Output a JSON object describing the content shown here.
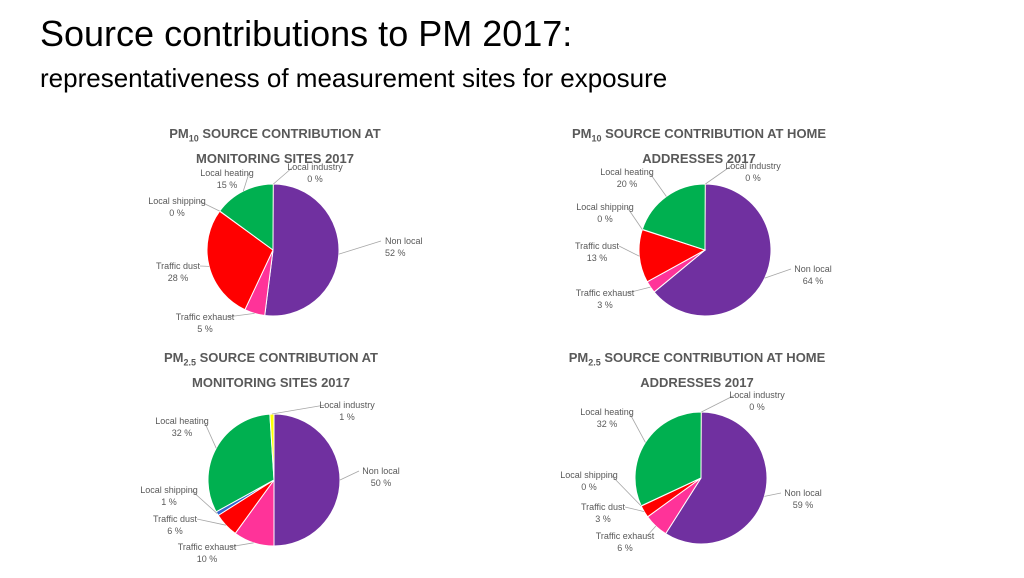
{
  "slide": {
    "title": "Source contributions to PM 2017:",
    "subtitle": "representativeness of measurement sites for exposure"
  },
  "chart_data": [
    {
      "type": "pie",
      "title_pre": "PM",
      "title_sub": "10",
      "title_line1": " SOURCE CONTRIBUTION AT",
      "title_line2": "MONITORING SITES 2017",
      "slices": [
        {
          "name": "Non local",
          "value": 52,
          "label": "52 %",
          "color": "#7030a0"
        },
        {
          "name": "Traffic exhaust",
          "value": 5,
          "label": "5 %",
          "color": "#ff3399"
        },
        {
          "name": "Traffic dust",
          "value": 28,
          "label": "28 %",
          "color": "#ff0000"
        },
        {
          "name": "Local shipping",
          "value": 0,
          "label": "0 %",
          "color": "#3366cc"
        },
        {
          "name": "Local heating",
          "value": 15,
          "label": "15 %",
          "color": "#00b050"
        },
        {
          "name": "Local industry",
          "value": 0,
          "label": "0 %",
          "color": "#ffff00"
        }
      ]
    },
    {
      "type": "pie",
      "title_pre": "PM",
      "title_sub": "10",
      "title_line1": " SOURCE CONTRIBUTION AT HOME",
      "title_line2": "ADDRESSES 2017",
      "slices": [
        {
          "name": "Non local",
          "value": 64,
          "label": "64 %",
          "color": "#7030a0"
        },
        {
          "name": "Traffic exhaust",
          "value": 3,
          "label": "3 %",
          "color": "#ff3399"
        },
        {
          "name": "Traffic dust",
          "value": 13,
          "label": "13 %",
          "color": "#ff0000"
        },
        {
          "name": "Local shipping",
          "value": 0,
          "label": "0 %",
          "color": "#3366cc"
        },
        {
          "name": "Local heating",
          "value": 20,
          "label": "20 %",
          "color": "#00b050"
        },
        {
          "name": "Local industry",
          "value": 0,
          "label": "0 %",
          "color": "#ffff00"
        }
      ]
    },
    {
      "type": "pie",
      "title_pre": "PM",
      "title_sub": "2.5",
      "title_line1": " SOURCE CONTRIBUTION AT",
      "title_line2": "MONITORING SITES 2017",
      "slices": [
        {
          "name": "Non local",
          "value": 50,
          "label": "50 %",
          "color": "#7030a0"
        },
        {
          "name": "Traffic exhaust",
          "value": 10,
          "label": "10 %",
          "color": "#ff3399"
        },
        {
          "name": "Traffic dust",
          "value": 6,
          "label": "6 %",
          "color": "#ff0000"
        },
        {
          "name": "Local shipping",
          "value": 1,
          "label": "1 %",
          "color": "#3366cc"
        },
        {
          "name": "Local heating",
          "value": 32,
          "label": "32 %",
          "color": "#00b050"
        },
        {
          "name": "Local industry",
          "value": 1,
          "label": "1 %",
          "color": "#ffff00"
        }
      ]
    },
    {
      "type": "pie",
      "title_pre": "PM",
      "title_sub": "2.5",
      "title_line1": " SOURCE CONTRIBUTION AT HOME",
      "title_line2": "ADDRESSES 2017",
      "slices": [
        {
          "name": "Non local",
          "value": 59,
          "label": "59 %",
          "color": "#7030a0"
        },
        {
          "name": "Traffic exhaust",
          "value": 6,
          "label": "6 %",
          "color": "#ff3399"
        },
        {
          "name": "Traffic dust",
          "value": 3,
          "label": "3 %",
          "color": "#ff0000"
        },
        {
          "name": "Local shipping",
          "value": 0,
          "label": "0 %",
          "color": "#3366cc"
        },
        {
          "name": "Local heating",
          "value": 32,
          "label": "32 %",
          "color": "#00b050"
        },
        {
          "name": "Local industry",
          "value": 0,
          "label": "0 %",
          "color": "#ffff00"
        }
      ]
    }
  ]
}
